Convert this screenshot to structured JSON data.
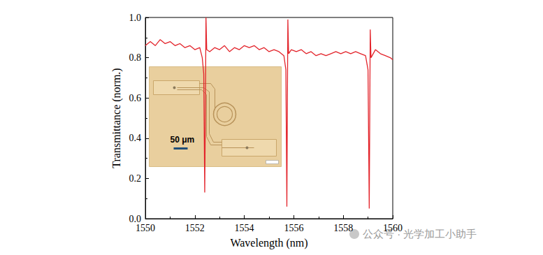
{
  "chart_data": {
    "type": "line",
    "x_label": "Wavelength (nm)",
    "y_label": "Transmittance (norm.)",
    "color": "#e3242b",
    "xlim": [
      1550,
      1560
    ],
    "xticks": [
      1550,
      1552,
      1554,
      1556,
      1558,
      1560
    ],
    "ylim": [
      0,
      1
    ],
    "yticks": [
      {
        "value": 0,
        "label": "0.0"
      },
      0.2,
      0.4,
      0.6,
      0.8,
      {
        "value": 1,
        "label": "1.0"
      }
    ],
    "grid": false,
    "annotations": [
      "50 μm",
      "公众号 · 光学加工小助手"
    ],
    "x": [
      1550.0,
      1550.2,
      1550.4,
      1550.6,
      1550.8,
      1551.0,
      1551.2,
      1551.4,
      1551.6,
      1551.8,
      1552.0,
      1552.2,
      1552.3,
      1552.36,
      1552.4,
      1552.43,
      1552.45,
      1552.48,
      1552.6,
      1552.8,
      1553.0,
      1553.2,
      1553.4,
      1553.6,
      1553.8,
      1554.0,
      1554.2,
      1554.4,
      1554.6,
      1554.8,
      1555.0,
      1555.2,
      1555.4,
      1555.6,
      1555.68,
      1555.72,
      1555.74,
      1555.76,
      1555.79,
      1555.9,
      1556.1,
      1556.3,
      1556.5,
      1556.7,
      1556.9,
      1557.1,
      1557.3,
      1557.5,
      1557.7,
      1557.9,
      1558.1,
      1558.3,
      1558.5,
      1558.7,
      1558.9,
      1559.0,
      1559.05,
      1559.07,
      1559.09,
      1559.12,
      1559.3,
      1559.5,
      1559.7,
      1559.9,
      1560.0
    ],
    "values": [
      0.86,
      0.88,
      0.86,
      0.89,
      0.87,
      0.88,
      0.86,
      0.87,
      0.85,
      0.86,
      0.84,
      0.85,
      0.8,
      0.72,
      0.13,
      0.6,
      1.0,
      0.84,
      0.83,
      0.85,
      0.84,
      0.86,
      0.83,
      0.85,
      0.84,
      0.86,
      0.85,
      0.86,
      0.84,
      0.85,
      0.83,
      0.84,
      0.83,
      0.81,
      0.74,
      0.06,
      0.55,
      0.99,
      0.82,
      0.84,
      0.83,
      0.84,
      0.82,
      0.83,
      0.81,
      0.82,
      0.81,
      0.82,
      0.83,
      0.82,
      0.83,
      0.82,
      0.83,
      0.82,
      0.81,
      0.74,
      0.05,
      0.5,
      0.94,
      0.8,
      0.84,
      0.82,
      0.81,
      0.8,
      0.79
    ]
  }
}
